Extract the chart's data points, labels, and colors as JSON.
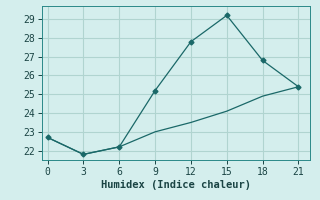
{
  "xlabel": "Humidex (Indice chaleur)",
  "bg_color": "#d4eeed",
  "grid_color": "#b0d4d0",
  "line_color": "#1a6868",
  "spine_color": "#2a8888",
  "tick_color": "#1a4444",
  "line1_x": [
    0,
    3,
    6,
    9,
    12,
    15,
    18,
    21
  ],
  "line1_y": [
    22.7,
    21.8,
    22.2,
    25.2,
    27.8,
    29.2,
    26.8,
    25.4
  ],
  "line2_x": [
    0,
    3,
    6,
    9,
    12,
    15,
    18,
    21
  ],
  "line2_y": [
    22.7,
    21.8,
    22.2,
    23.0,
    23.5,
    24.1,
    24.9,
    25.4
  ],
  "xlim": [
    -0.5,
    22
  ],
  "ylim": [
    21.5,
    29.7
  ],
  "xticks": [
    0,
    3,
    6,
    9,
    12,
    15,
    18,
    21
  ],
  "yticks": [
    22,
    23,
    24,
    25,
    26,
    27,
    28,
    29
  ],
  "axis_fontsize": 7.5,
  "tick_fontsize": 7
}
